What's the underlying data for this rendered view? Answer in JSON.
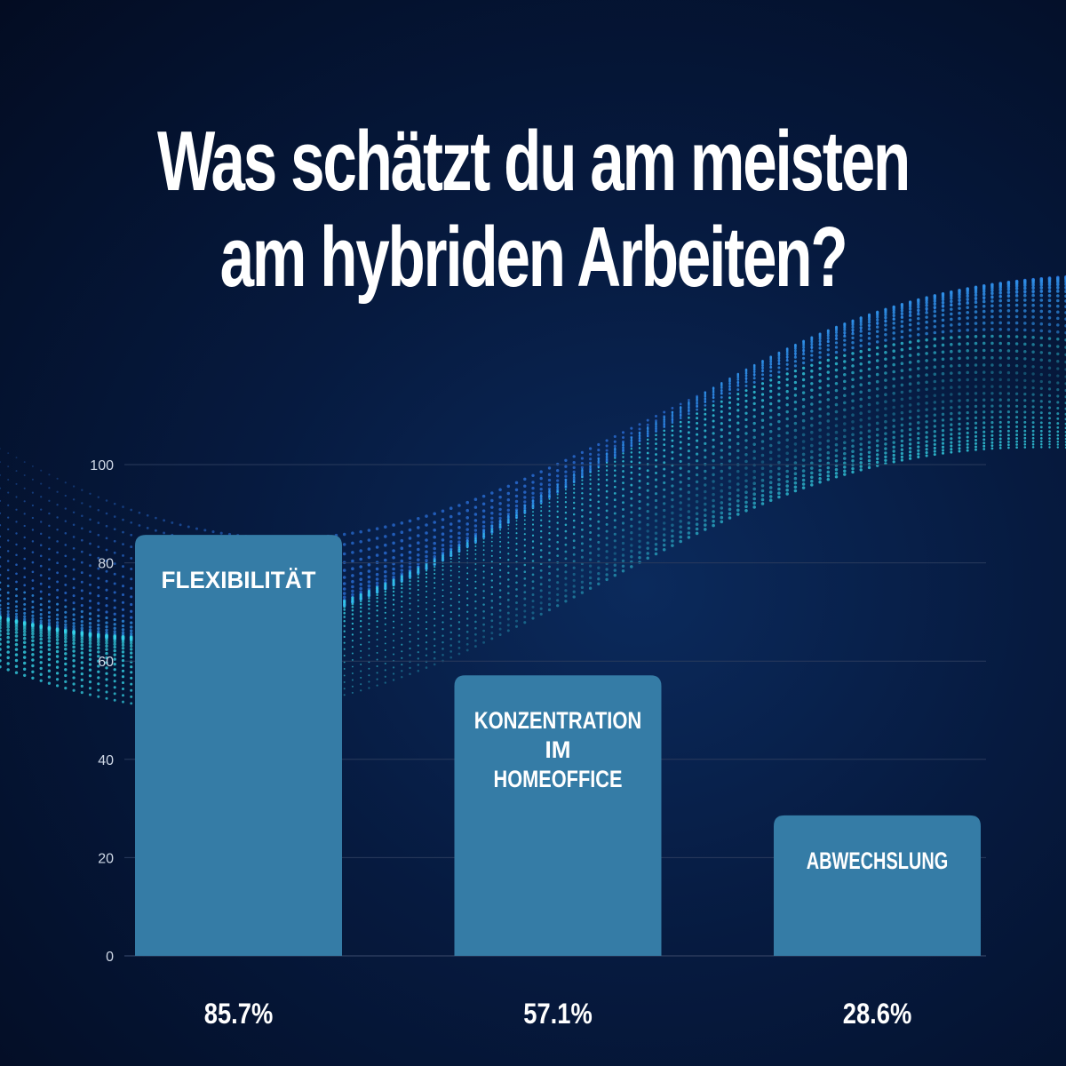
{
  "title": "Was schätzt du am meisten am hybriden Arbeiten?",
  "colors": {
    "bar": "#357ca6",
    "background": "#061a3f",
    "gridline": "#2a3b5c",
    "text": "#ffffff"
  },
  "chart_data": {
    "type": "bar",
    "title": "Was schätzt du am meisten am hybriden Arbeiten?",
    "categories": [
      "FLEXIBILITÄT",
      "KONZENTRATION IM HOMEOFFICE",
      "ABWECHSLUNG"
    ],
    "category_lines": [
      [
        "FLEXIBILITÄT"
      ],
      [
        "KONZENTRATION",
        "IM",
        "HOMEOFFICE"
      ],
      [
        "ABWECHSLUNG"
      ]
    ],
    "values": [
      85.7,
      57.1,
      28.6
    ],
    "value_labels": [
      "85.7%",
      "57.1%",
      "28.6%"
    ],
    "yticks": [
      0,
      20,
      40,
      60,
      80,
      100
    ],
    "ylim": [
      0,
      100
    ],
    "xlabel": "",
    "ylabel": "",
    "grid": true,
    "legend": "none"
  }
}
